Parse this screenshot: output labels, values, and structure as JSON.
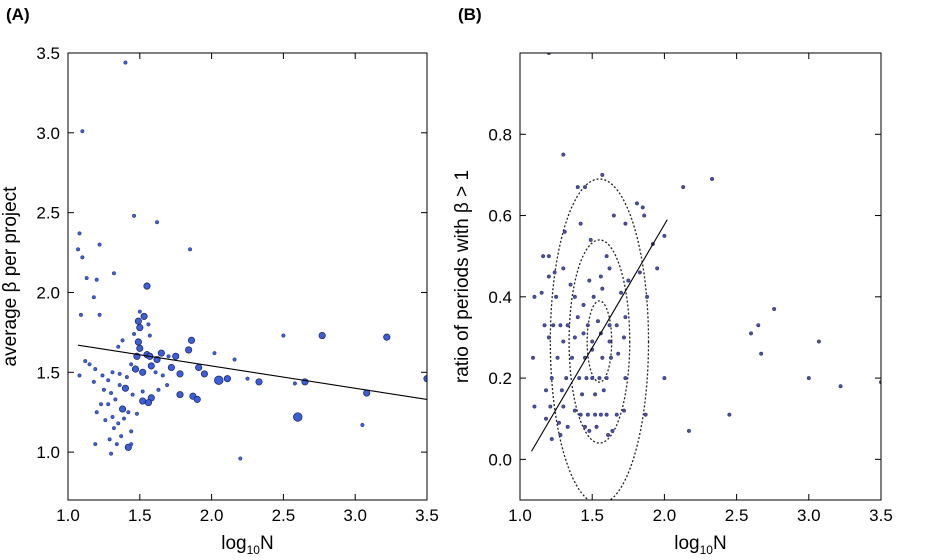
{
  "chart_data": [
    {
      "type": "scatter",
      "panel_label": "(A)",
      "xlabel_base": "log",
      "xlabel_sub": "10",
      "xlabel_tail": "N",
      "ylabel": "average β per project",
      "xlim": [
        1.0,
        3.5
      ],
      "ylim": [
        0.7,
        3.5
      ],
      "xticks": [
        "1.0",
        "1.5",
        "2.0",
        "2.5",
        "3.0",
        "3.5"
      ],
      "yticks": [
        "1.0",
        "1.5",
        "2.0",
        "2.5",
        "3.0",
        "3.5"
      ],
      "point_color": "#3a5fd9",
      "fit_line": {
        "x": [
          1.07,
          3.5
        ],
        "y": [
          1.67,
          1.33
        ]
      },
      "points": [
        [
          1.4,
          3.44,
          1
        ],
        [
          1.1,
          3.01,
          1
        ],
        [
          1.08,
          2.37,
          1
        ],
        [
          1.07,
          2.27,
          1
        ],
        [
          1.46,
          2.48,
          1
        ],
        [
          1.62,
          2.44,
          1
        ],
        [
          1.22,
          2.3,
          1
        ],
        [
          1.85,
          2.27,
          1
        ],
        [
          1.1,
          2.22,
          1
        ],
        [
          1.13,
          2.09,
          1
        ],
        [
          1.32,
          2.12,
          1
        ],
        [
          1.2,
          2.08,
          1
        ],
        [
          1.55,
          2.04,
          2
        ],
        [
          1.18,
          1.97,
          1
        ],
        [
          1.09,
          1.86,
          1
        ],
        [
          1.22,
          1.86,
          1
        ],
        [
          1.5,
          1.88,
          1
        ],
        [
          1.53,
          1.85,
          2
        ],
        [
          1.49,
          1.82,
          2
        ],
        [
          1.5,
          1.78,
          2
        ],
        [
          1.56,
          1.8,
          1
        ],
        [
          1.46,
          1.74,
          1
        ],
        [
          1.38,
          1.7,
          1
        ],
        [
          1.57,
          1.73,
          1
        ],
        [
          1.65,
          1.62,
          2
        ],
        [
          1.49,
          1.69,
          2
        ],
        [
          1.35,
          1.66,
          1
        ],
        [
          1.5,
          1.65,
          2
        ],
        [
          1.86,
          1.7,
          2
        ],
        [
          1.84,
          1.64,
          2
        ],
        [
          1.48,
          1.6,
          2
        ],
        [
          1.55,
          1.61,
          2
        ],
        [
          1.57,
          1.6,
          2
        ],
        [
          1.62,
          1.58,
          2
        ],
        [
          1.7,
          1.6,
          1
        ],
        [
          1.75,
          1.6,
          2
        ],
        [
          2.02,
          1.62,
          1
        ],
        [
          2.16,
          1.58,
          1
        ],
        [
          2.5,
          1.73,
          1
        ],
        [
          2.77,
          1.73,
          2
        ],
        [
          3.22,
          1.72,
          2
        ],
        [
          1.12,
          1.57,
          1
        ],
        [
          1.15,
          1.55,
          1
        ],
        [
          1.19,
          1.52,
          1
        ],
        [
          1.24,
          1.48,
          1
        ],
        [
          1.28,
          1.45,
          1
        ],
        [
          1.31,
          1.5,
          1
        ],
        [
          1.36,
          1.49,
          1
        ],
        [
          1.41,
          1.47,
          1
        ],
        [
          1.44,
          1.55,
          1
        ],
        [
          1.47,
          1.52,
          2
        ],
        [
          1.52,
          1.5,
          2
        ],
        [
          1.58,
          1.54,
          2
        ],
        [
          1.61,
          1.5,
          1
        ],
        [
          1.66,
          1.48,
          1
        ],
        [
          1.72,
          1.53,
          2
        ],
        [
          1.78,
          1.49,
          2
        ],
        [
          1.91,
          1.53,
          2
        ],
        [
          1.95,
          1.49,
          2
        ],
        [
          2.05,
          1.45,
          3
        ],
        [
          2.33,
          1.44,
          2
        ],
        [
          2.65,
          1.44,
          2
        ],
        [
          3.5,
          1.46,
          2
        ],
        [
          2.11,
          1.46,
          2
        ],
        [
          2.25,
          1.46,
          1
        ],
        [
          2.58,
          1.43,
          1
        ],
        [
          1.08,
          1.48,
          1
        ],
        [
          1.18,
          1.44,
          1
        ],
        [
          1.25,
          1.39,
          1
        ],
        [
          1.3,
          1.37,
          1
        ],
        [
          1.36,
          1.42,
          1
        ],
        [
          1.4,
          1.4,
          2
        ],
        [
          1.45,
          1.36,
          1
        ],
        [
          1.52,
          1.38,
          1
        ],
        [
          1.58,
          1.34,
          2
        ],
        [
          1.63,
          1.39,
          1
        ],
        [
          1.69,
          1.42,
          1
        ],
        [
          1.78,
          1.36,
          2
        ],
        [
          1.87,
          1.35,
          2
        ],
        [
          1.9,
          1.33,
          2
        ],
        [
          3.08,
          1.37,
          2
        ],
        [
          1.23,
          1.3,
          1
        ],
        [
          1.28,
          1.3,
          1
        ],
        [
          1.33,
          1.33,
          1
        ],
        [
          1.38,
          1.27,
          2
        ],
        [
          1.42,
          1.25,
          1
        ],
        [
          1.48,
          1.24,
          1
        ],
        [
          1.52,
          1.32,
          2
        ],
        [
          1.56,
          1.31,
          2
        ],
        [
          1.2,
          1.25,
          1
        ],
        [
          1.26,
          1.2,
          1
        ],
        [
          1.31,
          1.22,
          1
        ],
        [
          1.35,
          1.18,
          1
        ],
        [
          1.39,
          1.21,
          1
        ],
        [
          1.44,
          1.13,
          1
        ],
        [
          1.32,
          1.15,
          1
        ],
        [
          1.37,
          1.1,
          1
        ],
        [
          1.29,
          1.08,
          1
        ],
        [
          1.34,
          1.05,
          1
        ],
        [
          1.42,
          1.03,
          2
        ],
        [
          1.44,
          1.05,
          1
        ],
        [
          1.19,
          1.05,
          1
        ],
        [
          1.3,
          0.99,
          1
        ],
        [
          2.6,
          1.22,
          3
        ],
        [
          3.05,
          1.17,
          1
        ],
        [
          2.2,
          0.96,
          1
        ]
      ]
    },
    {
      "type": "scatter",
      "panel_label": "(B)",
      "xlabel_base": "log",
      "xlabel_sub": "10",
      "xlabel_tail": "N",
      "ylabel": "ratio of periods with β  > 1",
      "xlim": [
        1.0,
        3.5
      ],
      "ylim": [
        -0.1,
        1.0
      ],
      "xticks": [
        "1.0",
        "1.5",
        "2.0",
        "2.5",
        "3.0",
        "3.5"
      ],
      "yticks": [
        "0.0",
        "0.2",
        "0.4",
        "0.6",
        "0.8"
      ],
      "point_color": "#4a4fa0",
      "fit_line": {
        "x": [
          1.08,
          2.02
        ],
        "y": [
          0.02,
          0.59
        ]
      },
      "ellipses": [
        {
          "cx": 1.55,
          "cy": 0.29,
          "rx": 0.085,
          "ry": 0.1,
          "angle": 0
        },
        {
          "cx": 1.55,
          "cy": 0.29,
          "rx": 0.21,
          "ry": 0.25,
          "angle": 0
        },
        {
          "cx": 1.55,
          "cy": 0.29,
          "rx": 0.34,
          "ry": 0.4,
          "angle": 0
        }
      ],
      "points": [
        [
          1.2,
          1.0
        ],
        [
          1.3,
          0.75
        ],
        [
          1.4,
          0.67
        ],
        [
          1.45,
          0.67
        ],
        [
          1.57,
          0.7
        ],
        [
          1.65,
          0.6
        ],
        [
          1.81,
          0.63
        ],
        [
          1.85,
          0.62
        ],
        [
          2.13,
          0.67
        ],
        [
          2.33,
          0.69
        ],
        [
          1.16,
          0.5
        ],
        [
          1.2,
          0.5
        ],
        [
          1.31,
          0.56
        ],
        [
          1.42,
          0.58
        ],
        [
          1.49,
          0.54
        ],
        [
          1.6,
          0.5
        ],
        [
          1.73,
          0.58
        ],
        [
          1.86,
          0.6
        ],
        [
          1.92,
          0.53
        ],
        [
          2.0,
          0.55
        ],
        [
          1.2,
          0.45
        ],
        [
          1.24,
          0.46
        ],
        [
          1.3,
          0.47
        ],
        [
          1.35,
          0.43
        ],
        [
          1.48,
          0.44
        ],
        [
          1.56,
          0.45
        ],
        [
          1.62,
          0.47
        ],
        [
          1.75,
          0.44
        ],
        [
          1.83,
          0.46
        ],
        [
          1.95,
          0.47
        ],
        [
          1.1,
          0.4
        ],
        [
          1.15,
          0.41
        ],
        [
          1.25,
          0.4
        ],
        [
          1.38,
          0.4
        ],
        [
          1.44,
          0.38
        ],
        [
          1.51,
          0.4
        ],
        [
          1.57,
          0.42
        ],
        [
          1.7,
          0.41
        ],
        [
          1.88,
          0.4
        ],
        [
          2.76,
          0.37
        ],
        [
          1.17,
          0.33
        ],
        [
          1.23,
          0.33
        ],
        [
          1.28,
          0.33
        ],
        [
          1.33,
          0.33
        ],
        [
          1.4,
          0.35
        ],
        [
          1.47,
          0.33
        ],
        [
          1.54,
          0.34
        ],
        [
          1.62,
          0.33
        ],
        [
          1.67,
          0.33
        ],
        [
          1.73,
          0.35
        ],
        [
          2.65,
          0.33
        ],
        [
          2.6,
          0.31
        ],
        [
          1.2,
          0.3
        ],
        [
          1.3,
          0.29
        ],
        [
          1.38,
          0.3
        ],
        [
          1.44,
          0.31
        ],
        [
          1.5,
          0.29
        ],
        [
          1.56,
          0.31
        ],
        [
          1.62,
          0.29
        ],
        [
          1.72,
          0.3
        ],
        [
          1.26,
          0.25
        ],
        [
          1.36,
          0.25
        ],
        [
          1.45,
          0.25
        ],
        [
          1.5,
          0.27
        ],
        [
          1.57,
          0.25
        ],
        [
          1.63,
          0.25
        ],
        [
          1.68,
          0.26
        ],
        [
          2.67,
          0.26
        ],
        [
          1.09,
          0.25
        ],
        [
          1.22,
          0.2
        ],
        [
          1.32,
          0.2
        ],
        [
          1.41,
          0.2
        ],
        [
          1.46,
          0.2
        ],
        [
          1.5,
          0.2
        ],
        [
          1.55,
          0.2
        ],
        [
          1.6,
          0.2
        ],
        [
          1.73,
          0.2
        ],
        [
          2.0,
          0.2
        ],
        [
          3.07,
          0.29
        ],
        [
          1.18,
          0.17
        ],
        [
          1.29,
          0.17
        ],
        [
          1.43,
          0.16
        ],
        [
          1.52,
          0.16
        ],
        [
          1.58,
          0.17
        ],
        [
          3.0,
          0.2
        ],
        [
          3.22,
          0.18
        ],
        [
          3.5,
          0.19
        ],
        [
          1.1,
          0.13
        ],
        [
          1.21,
          0.13
        ],
        [
          1.3,
          0.13
        ],
        [
          1.38,
          0.12
        ],
        [
          1.42,
          0.11
        ],
        [
          1.47,
          0.11
        ],
        [
          1.52,
          0.11
        ],
        [
          1.56,
          0.11
        ],
        [
          1.6,
          0.11
        ],
        [
          1.67,
          0.11
        ],
        [
          1.72,
          0.12
        ],
        [
          1.87,
          0.11
        ],
        [
          2.45,
          0.11
        ],
        [
          1.18,
          0.1
        ],
        [
          1.27,
          0.09
        ],
        [
          1.33,
          0.08
        ],
        [
          1.45,
          0.08
        ],
        [
          1.53,
          0.08
        ],
        [
          1.64,
          0.07
        ],
        [
          2.17,
          0.07
        ],
        [
          1.22,
          0.05
        ],
        [
          1.28,
          0.06
        ],
        [
          1.48,
          0.07
        ],
        [
          1.61,
          0.06
        ]
      ]
    }
  ]
}
